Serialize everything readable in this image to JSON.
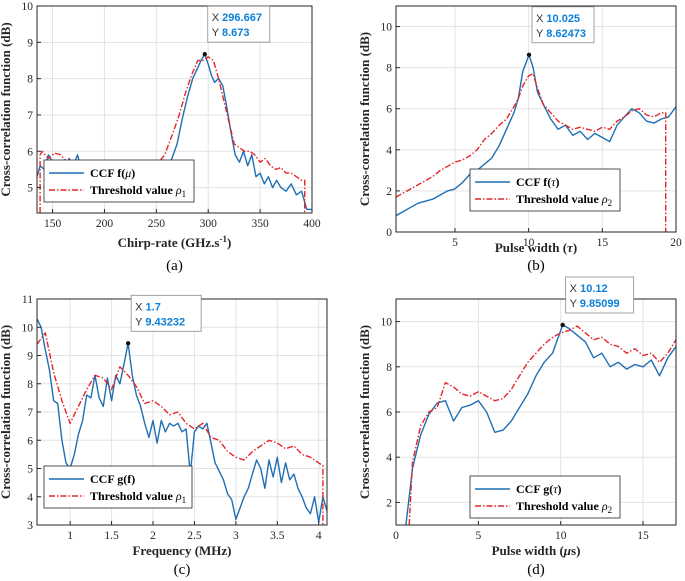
{
  "colors": {
    "ccf": "#1f6fb4",
    "threshold": "#e3262a",
    "grid": "#e3e3e3",
    "axis": "#262626",
    "datatip_value": "#0b80d8"
  },
  "chart_data": [
    {
      "type": "line",
      "panel_label": "(a)",
      "xlabel": "Chirp-rate (GHz.s",
      "xlabel_sup": "-1",
      "xlabel_close": ")",
      "ylabel": "Cross-correlation function (dB)",
      "xlim": [
        135,
        400
      ],
      "ylim": [
        4.3,
        10
      ],
      "xticks": [
        150,
        200,
        250,
        300,
        350,
        400
      ],
      "yticks": [
        5,
        6,
        7,
        8,
        9,
        10
      ],
      "xtick_labels": [
        "150",
        "200",
        "250",
        "300",
        "350",
        "400"
      ],
      "ytick_labels": [
        "5",
        "6",
        "7",
        "8",
        "9",
        "10"
      ],
      "grid": true,
      "legend": {
        "placement": "bottom-left",
        "entries": [
          {
            "series": 0,
            "text": "CCF f(",
            "sym": "μ",
            "tail": ")"
          },
          {
            "series": 1,
            "text": "Threshold value ",
            "sym": "ρ",
            "sub": "1"
          }
        ]
      },
      "datatip": {
        "x": 296.667,
        "y": 8.673,
        "x_label": "X",
        "y_label": "Y",
        "x_text": "296.667",
        "y_text": "8.673"
      },
      "series": [
        {
          "name": "CCF f(μ)",
          "style": "solid",
          "x": [
            135,
            138,
            142,
            146,
            150,
            154,
            158,
            162,
            166,
            170,
            174,
            178,
            182,
            186,
            190,
            200,
            210,
            220,
            230,
            240,
            250,
            258,
            265,
            270,
            275,
            280,
            285,
            290,
            293,
            296.667,
            300,
            303,
            306,
            310,
            314,
            318,
            322,
            326,
            330,
            334,
            338,
            342,
            346,
            350,
            354,
            358,
            362,
            366,
            370,
            375,
            380,
            385,
            390,
            395,
            400
          ],
          "y": [
            5.3,
            5.6,
            5.5,
            5.9,
            5.7,
            5.5,
            5.6,
            5.4,
            5.8,
            5.6,
            5.9,
            5.5,
            5.4,
            5.2,
            5.1,
            4.9,
            4.8,
            4.7,
            4.8,
            4.7,
            4.9,
            5.2,
            5.8,
            6.2,
            6.9,
            7.5,
            8.0,
            8.3,
            8.5,
            8.673,
            8.4,
            8.1,
            7.9,
            8.0,
            7.8,
            7.2,
            6.5,
            5.9,
            5.7,
            6.0,
            5.6,
            5.9,
            5.3,
            5.4,
            5.1,
            5.3,
            5.0,
            5.2,
            5.0,
            4.9,
            5.1,
            4.8,
            4.9,
            4.4,
            4.4
          ]
        },
        {
          "name": "Threshold value ρ1",
          "style": "dashdot",
          "x": [
            138,
            138,
            140,
            146,
            152,
            158,
            164,
            170,
            176,
            182,
            190,
            200,
            210,
            220,
            230,
            240,
            250,
            258,
            266,
            272,
            278,
            284,
            290,
            295,
            300,
            305,
            310,
            315,
            320,
            325,
            330,
            335,
            340,
            345,
            350,
            355,
            360,
            365,
            370,
            375,
            380,
            385,
            390,
            393,
            393
          ],
          "y": [
            4.3,
            5.9,
            6.0,
            5.8,
            5.95,
            5.9,
            5.7,
            5.75,
            5.6,
            5.5,
            5.3,
            5.2,
            5.0,
            5.1,
            5.3,
            5.5,
            5.6,
            5.9,
            6.5,
            7.0,
            7.6,
            8.1,
            8.5,
            8.5,
            8.6,
            8.5,
            8.0,
            7.4,
            6.8,
            6.2,
            6.1,
            6.0,
            6.0,
            5.9,
            5.7,
            5.8,
            5.6,
            5.5,
            5.55,
            5.4,
            5.4,
            5.3,
            5.2,
            5.2,
            4.3
          ]
        }
      ]
    },
    {
      "type": "line",
      "panel_label": "(b)",
      "xlabel": "Pulse width (",
      "xlabel_sym": "τ",
      "xlabel_close": ")",
      "ylabel": "Cross-correlation function (dB)",
      "xlim": [
        1,
        20
      ],
      "ylim": [
        0,
        11
      ],
      "xticks": [
        5,
        10,
        15,
        20
      ],
      "yticks": [
        0,
        2,
        4,
        6,
        8,
        10
      ],
      "xtick_labels": [
        "5",
        "10",
        "15",
        "20"
      ],
      "ytick_labels": [
        "0",
        "2",
        "4",
        "6",
        "8",
        "10"
      ],
      "grid": true,
      "legend": {
        "placement": "bottom-left",
        "entries": [
          {
            "series": 0,
            "text": "CCF f(",
            "sym": "τ",
            "tail": ")"
          },
          {
            "series": 1,
            "text": "Threshold value ",
            "sym": "ρ",
            "sub": "2"
          }
        ]
      },
      "datatip": {
        "x": 10.025,
        "y": 8.62473,
        "x_label": "X",
        "y_label": "Y",
        "x_text": "10.025",
        "y_text": "8.62473"
      },
      "series": [
        {
          "name": "CCF f(τ)",
          "style": "solid",
          "x": [
            1,
            1.5,
            2,
            2.5,
            3,
            3.5,
            4,
            4.5,
            5,
            5.5,
            6,
            6.5,
            7,
            7.5,
            8,
            8.5,
            9,
            9.3,
            9.6,
            10.025,
            10.3,
            10.6,
            11,
            11.5,
            12,
            12.5,
            13,
            13.5,
            14,
            14.5,
            15,
            15.5,
            16,
            16.5,
            17,
            17.5,
            18,
            18.5,
            19,
            19.5,
            20
          ],
          "y": [
            0.8,
            1.0,
            1.2,
            1.4,
            1.5,
            1.6,
            1.8,
            2.0,
            2.1,
            2.4,
            2.8,
            3.0,
            3.3,
            3.6,
            4.2,
            5.0,
            5.8,
            6.5,
            7.8,
            8.62473,
            8.0,
            6.8,
            6.2,
            5.5,
            5.0,
            5.2,
            4.7,
            4.9,
            4.5,
            4.8,
            4.6,
            4.4,
            5.2,
            5.6,
            6.0,
            5.8,
            5.4,
            5.3,
            5.5,
            5.6,
            6.1
          ]
        },
        {
          "name": "Threshold value ρ2",
          "style": "dashdot",
          "x": [
            1,
            1.5,
            2,
            2.5,
            3,
            3.5,
            4,
            4.5,
            5,
            5.5,
            6,
            6.5,
            7,
            7.5,
            8,
            8.5,
            9,
            9.3,
            9.6,
            10,
            10.3,
            10.6,
            11,
            11.5,
            12,
            12.5,
            13,
            13.5,
            14,
            14.5,
            15,
            15.5,
            16,
            16.5,
            17,
            17.5,
            18,
            18.5,
            19,
            19.3,
            19.3
          ],
          "y": [
            1.7,
            1.9,
            2.1,
            2.3,
            2.5,
            2.7,
            3.0,
            3.2,
            3.4,
            3.5,
            3.7,
            4.0,
            4.5,
            4.8,
            5.2,
            5.5,
            6.1,
            6.5,
            7.1,
            7.6,
            7.7,
            7.0,
            6.2,
            5.8,
            5.4,
            5.2,
            5.0,
            5.1,
            5.0,
            4.9,
            5.1,
            5.0,
            5.4,
            5.6,
            5.9,
            6.0,
            5.7,
            5.6,
            5.8,
            5.8,
            0
          ]
        }
      ]
    },
    {
      "type": "line",
      "panel_label": "(c)",
      "xlabel": "Frequency (MHz)",
      "ylabel": "Cross-correlation function (dB)",
      "xlim": [
        0.6,
        4.1
      ],
      "ylim": [
        3,
        11
      ],
      "xticks": [
        1,
        1.5,
        2,
        2.5,
        3,
        3.5,
        4
      ],
      "yticks": [
        3,
        4,
        5,
        6,
        7,
        8,
        9,
        10,
        11
      ],
      "xtick_labels": [
        "1",
        "1.5",
        "2",
        "2.5",
        "3",
        "3.5",
        "4"
      ],
      "ytick_labels": [
        "3",
        "4",
        "5",
        "6",
        "7",
        "8",
        "9",
        "10",
        "11"
      ],
      "grid": true,
      "legend": {
        "placement": "bottom-left",
        "entries": [
          {
            "series": 0,
            "text": "CCF g(f)"
          },
          {
            "series": 1,
            "text": "Threshold value ",
            "sym": "ρ",
            "sub": "1"
          }
        ]
      },
      "datatip": {
        "x": 1.7,
        "y": 9.43232,
        "x_label": "X",
        "y_label": "Y",
        "x_text": "1.7",
        "y_text": "9.43232"
      },
      "series": [
        {
          "name": "CCF g(f)",
          "style": "solid",
          "x": [
            0.6,
            0.65,
            0.7,
            0.75,
            0.8,
            0.85,
            0.9,
            0.95,
            1.0,
            1.05,
            1.1,
            1.15,
            1.2,
            1.25,
            1.3,
            1.35,
            1.4,
            1.45,
            1.5,
            1.55,
            1.6,
            1.65,
            1.7,
            1.75,
            1.8,
            1.85,
            1.9,
            1.95,
            2.0,
            2.05,
            2.1,
            2.15,
            2.2,
            2.25,
            2.3,
            2.35,
            2.4,
            2.45,
            2.5,
            2.55,
            2.6,
            2.65,
            2.7,
            2.75,
            2.8,
            2.85,
            2.9,
            2.95,
            3.0,
            3.05,
            3.1,
            3.15,
            3.2,
            3.25,
            3.3,
            3.35,
            3.4,
            3.45,
            3.5,
            3.55,
            3.6,
            3.65,
            3.7,
            3.75,
            3.8,
            3.85,
            3.9,
            3.95,
            4.0,
            4.05,
            4.1
          ],
          "y": [
            10.3,
            10.0,
            9.2,
            8.5,
            7.4,
            7.3,
            6.0,
            5.2,
            5.0,
            5.5,
            6.2,
            6.7,
            7.6,
            7.5,
            8.3,
            7.5,
            7.2,
            8.2,
            7.4,
            8.3,
            8.0,
            8.7,
            9.43232,
            8.3,
            7.6,
            7.2,
            6.6,
            6.1,
            6.7,
            5.9,
            6.7,
            6.3,
            6.6,
            6.5,
            6.6,
            6.3,
            6.4,
            4.8,
            6.3,
            6.5,
            6.4,
            6.6,
            5.9,
            5.2,
            4.9,
            4.6,
            4.1,
            3.9,
            3.2,
            3.6,
            4.0,
            4.3,
            4.8,
            5.3,
            5.0,
            4.3,
            5.3,
            4.7,
            5.4,
            4.5,
            5.2,
            4.6,
            4.8,
            4.3,
            4.0,
            3.6,
            3.4,
            4.0,
            3.1,
            4.0,
            3.5
          ]
        },
        {
          "name": "Threshold value ρ1",
          "style": "dashdot",
          "x": [
            0.6,
            0.7,
            0.8,
            0.9,
            1.0,
            1.1,
            1.2,
            1.3,
            1.4,
            1.5,
            1.6,
            1.7,
            1.8,
            1.9,
            2.0,
            2.1,
            2.2,
            2.3,
            2.4,
            2.5,
            2.6,
            2.7,
            2.8,
            2.9,
            3.0,
            3.1,
            3.2,
            3.3,
            3.4,
            3.5,
            3.6,
            3.7,
            3.8,
            3.9,
            4.0,
            4.05,
            4.05
          ],
          "y": [
            9.4,
            9.8,
            8.4,
            7.4,
            6.6,
            7.2,
            7.8,
            8.3,
            8.2,
            7.8,
            8.6,
            8.3,
            7.9,
            7.3,
            7.4,
            7.2,
            6.9,
            7.0,
            6.6,
            6.4,
            6.6,
            6.1,
            6.0,
            5.6,
            5.4,
            5.3,
            5.6,
            5.8,
            6.0,
            5.9,
            5.7,
            5.8,
            5.5,
            5.4,
            5.2,
            5.1,
            3.0
          ]
        }
      ]
    },
    {
      "type": "line",
      "panel_label": "(d)",
      "xlabel": "Pulse width (",
      "xlabel_sym": "μ",
      "xlabel_tail": "s)",
      "ylabel": "Cross-correlation function (dB)",
      "xlim": [
        0,
        17
      ],
      "ylim": [
        1,
        11
      ],
      "xticks": [
        0,
        5,
        10,
        15
      ],
      "yticks": [
        2,
        4,
        6,
        8,
        10
      ],
      "xtick_labels": [
        "0",
        "5",
        "10",
        "15"
      ],
      "ytick_labels": [
        "2",
        "4",
        "6",
        "8",
        "10"
      ],
      "grid": true,
      "legend": {
        "placement": "bottom-center",
        "entries": [
          {
            "series": 0,
            "text": "CCF g(",
            "sym": "τ",
            "tail": ")"
          },
          {
            "series": 1,
            "text": "Threshold value ",
            "sym": "ρ",
            "sub": "2"
          }
        ]
      },
      "datatip": {
        "x": 10.12,
        "y": 9.85099,
        "x_label": "X",
        "y_label": "Y",
        "x_text": "10.12",
        "y_text": "9.85099"
      },
      "series": [
        {
          "name": "CCF g(τ)",
          "style": "solid",
          "x": [
            0.6,
            1.0,
            1.5,
            2.0,
            2.5,
            3.0,
            3.5,
            4.0,
            4.5,
            5.0,
            5.5,
            6.0,
            6.5,
            7.0,
            7.5,
            8.0,
            8.5,
            9.0,
            9.5,
            10.12,
            10.5,
            11.0,
            11.5,
            12.0,
            12.5,
            13.0,
            13.5,
            14.0,
            14.5,
            15.0,
            15.5,
            16.0,
            16.5,
            17.0
          ],
          "y": [
            1.0,
            3.5,
            5.0,
            5.9,
            6.4,
            6.5,
            5.6,
            6.2,
            6.3,
            6.5,
            6.0,
            5.1,
            5.2,
            5.6,
            6.2,
            6.8,
            7.6,
            8.2,
            8.6,
            9.85099,
            9.7,
            9.4,
            9.1,
            8.4,
            8.6,
            8.0,
            8.2,
            7.9,
            8.1,
            8.0,
            8.3,
            7.6,
            8.4,
            8.9
          ]
        },
        {
          "name": "Threshold value ρ2",
          "style": "dashdot",
          "x": [
            0.8,
            1.0,
            1.5,
            2.0,
            2.5,
            3.0,
            3.5,
            4.0,
            4.5,
            5.0,
            5.5,
            6.0,
            6.5,
            7.0,
            7.5,
            8.0,
            8.5,
            9.0,
            9.5,
            10.0,
            10.5,
            11.0,
            11.5,
            12.0,
            12.5,
            13.0,
            13.5,
            14.0,
            14.5,
            15.0,
            15.5,
            16.0,
            16.5,
            17.0
          ],
          "y": [
            1.0,
            3.8,
            5.4,
            6.0,
            6.2,
            7.3,
            7.1,
            6.8,
            6.7,
            6.9,
            6.7,
            6.5,
            6.6,
            7.0,
            7.6,
            8.2,
            8.6,
            9.0,
            9.3,
            9.5,
            9.6,
            9.8,
            9.5,
            9.2,
            9.3,
            9.0,
            8.9,
            8.6,
            8.8,
            8.5,
            8.6,
            8.2,
            8.6,
            9.2
          ]
        }
      ]
    }
  ]
}
